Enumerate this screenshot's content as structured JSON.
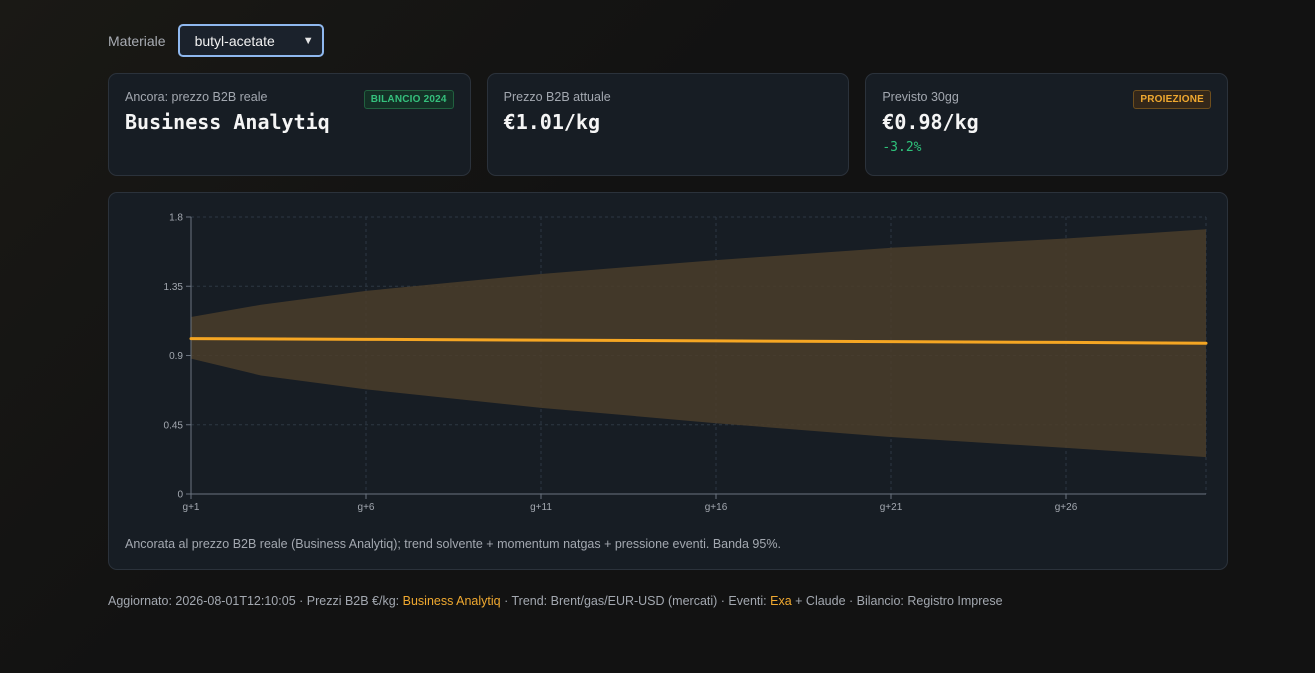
{
  "selector": {
    "label": "Materiale",
    "value": "butyl-acetate"
  },
  "cards": [
    {
      "label": "Ancora: prezzo B2B reale",
      "value": "Business Analytiq",
      "badge": "BILANCIO 2024",
      "sub": ""
    },
    {
      "label": "Prezzo B2B attuale",
      "value": "€1.01/kg",
      "badge": "",
      "sub": ""
    },
    {
      "label": "Previsto 30gg",
      "value": "€0.98/kg",
      "badge": "PROIEZIONE",
      "sub": "-3.2%"
    }
  ],
  "chart_data": {
    "type": "line",
    "title": "",
    "xlabel": "",
    "ylabel": "",
    "x_ticks": [
      "g+1",
      "g+6",
      "g+11",
      "g+16",
      "g+21",
      "g+26"
    ],
    "x_range": [
      1,
      30
    ],
    "ylim": [
      0,
      1.8
    ],
    "y_ticks": [
      0,
      0.45,
      0.9,
      1.35,
      1.8
    ],
    "grid": true,
    "series": [
      {
        "role": "forecast",
        "color": "#f5a623",
        "points": [
          [
            1,
            1.01
          ],
          [
            6,
            1.005
          ],
          [
            11,
            1.0
          ],
          [
            16,
            0.995
          ],
          [
            21,
            0.99
          ],
          [
            26,
            0.985
          ],
          [
            30,
            0.98
          ]
        ]
      }
    ],
    "band": {
      "color": "#4a3d2a",
      "upper": [
        [
          1,
          1.15
        ],
        [
          3,
          1.23
        ],
        [
          6,
          1.32
        ],
        [
          11,
          1.43
        ],
        [
          16,
          1.52
        ],
        [
          21,
          1.6
        ],
        [
          26,
          1.66
        ],
        [
          30,
          1.72
        ]
      ],
      "lower": [
        [
          1,
          0.88
        ],
        [
          3,
          0.77
        ],
        [
          6,
          0.68
        ],
        [
          11,
          0.56
        ],
        [
          16,
          0.46
        ],
        [
          21,
          0.37
        ],
        [
          26,
          0.3
        ],
        [
          30,
          0.24
        ]
      ]
    }
  },
  "chart_caption": "Ancorata al prezzo B2B reale (Business Analytiq); trend solvente + momentum natgas + pressione eventi. Banda 95%.",
  "footer": {
    "prefix": "Aggiornato: 2026-08-01T12:10:05 · Prezzi B2B €/kg: ",
    "source": "Business Analytiq",
    "mid": " · Trend: Brent/gas/EUR-USD (mercati) · Eventi: ",
    "events": "Exa",
    "suffix": " + Claude · Bilancio: Registro Imprese"
  }
}
